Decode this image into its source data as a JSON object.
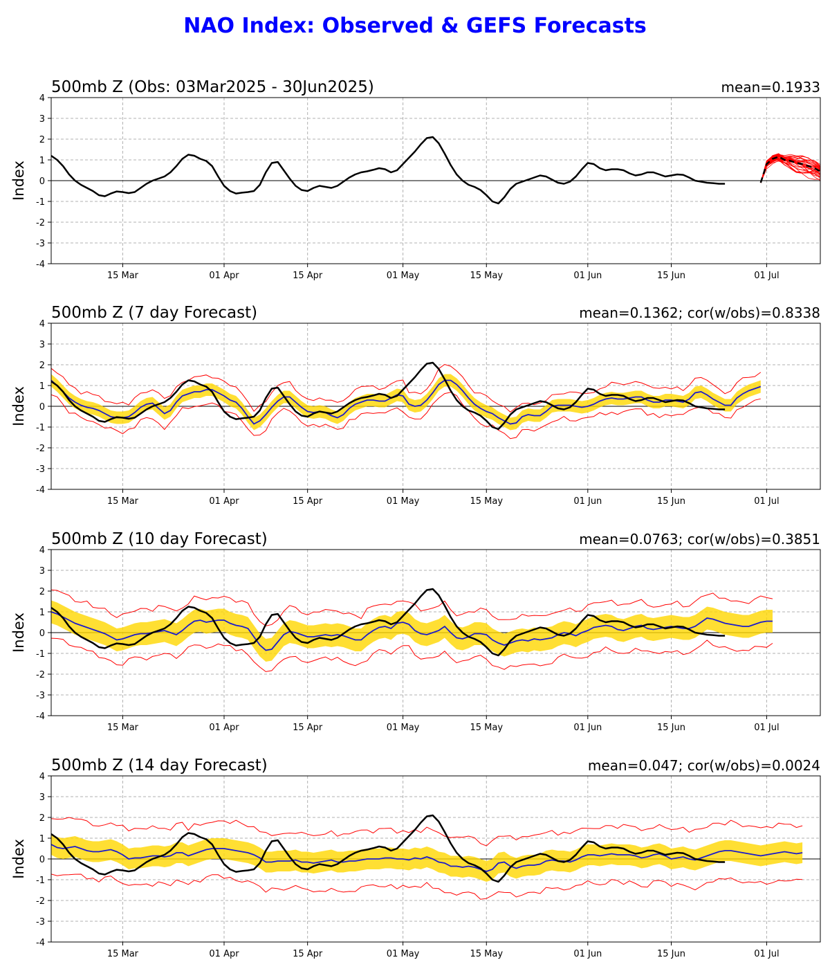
{
  "title": "NAO Index: Observed & GEFS Forecasts",
  "colors": {
    "title": "#0000ff",
    "observed": "#000000",
    "mean": "#1a1acc",
    "members": "#ff0000",
    "spread": "#ffd700"
  },
  "chart_data": [
    {
      "type": "line",
      "title": "500mb Z (Obs: 03Mar2025 - 30Jun2025)",
      "stat": "mean=0.1933",
      "ylabel": "Index",
      "ylim": [
        -4,
        4
      ],
      "xlim": [
        "2025-03-03",
        "2025-07-10"
      ],
      "yticks": [
        -4,
        -3,
        -2,
        -1,
        0,
        1,
        2,
        3,
        4
      ],
      "xticks": [
        {
          "date": "2025-03-15",
          "label": "15 Mar"
        },
        {
          "date": "2025-04-01",
          "label": "01 Apr"
        },
        {
          "date": "2025-04-15",
          "label": "15 Apr"
        },
        {
          "date": "2025-05-01",
          "label": "01 May"
        },
        {
          "date": "2025-05-15",
          "label": "15 May"
        },
        {
          "date": "2025-06-01",
          "label": "01 Jun"
        },
        {
          "date": "2025-06-15",
          "label": "15 Jun"
        },
        {
          "date": "2025-07-01",
          "label": "01 Jul"
        }
      ],
      "grid": true,
      "series": [
        {
          "role": "observed",
          "x_start": "2025-03-03",
          "values": [
            1.2,
            1.0,
            0.7,
            0.3,
            0.0,
            -0.2,
            -0.35,
            -0.5,
            -0.7,
            -0.75,
            -0.62,
            -0.52,
            -0.55,
            -0.6,
            -0.55,
            -0.35,
            -0.15,
            0.0,
            0.1,
            0.2,
            0.4,
            0.7,
            1.05,
            1.25,
            1.2,
            1.05,
            0.95,
            0.7,
            0.2,
            -0.25,
            -0.5,
            -0.62,
            -0.58,
            -0.55,
            -0.5,
            -0.2,
            0.4,
            0.85,
            0.9,
            0.5,
            0.1,
            -0.25,
            -0.45,
            -0.5,
            -0.35,
            -0.25,
            -0.3,
            -0.35,
            -0.25,
            -0.05,
            0.15,
            0.3,
            0.4,
            0.45,
            0.52,
            0.6,
            0.55,
            0.4,
            0.5,
            0.8,
            1.1,
            1.4,
            1.75,
            2.05,
            2.1,
            1.8,
            1.3,
            0.75,
            0.3,
            0.0,
            -0.2,
            -0.3,
            -0.45,
            -0.7,
            -1.0,
            -1.1,
            -0.8,
            -0.4,
            -0.15,
            -0.05,
            0.05,
            0.15,
            0.25,
            0.2,
            0.05,
            -0.1,
            -0.15,
            -0.05,
            0.2,
            0.55,
            0.85,
            0.8,
            0.6,
            0.5,
            0.55,
            0.55,
            0.5,
            0.35,
            0.25,
            0.3,
            0.4,
            0.4,
            0.3,
            0.2,
            0.25,
            0.3,
            0.28,
            0.15,
            0.0,
            -0.05,
            -0.1,
            -0.12,
            -0.15,
            -0.15
          ]
        },
        {
          "role": "forecast-mean",
          "x_start": "2025-06-30",
          "values": [
            -0.1,
            0.8,
            1.05,
            1.15,
            1.0,
            0.95,
            0.85,
            0.8,
            0.7,
            0.6,
            0.45,
            0.35,
            0.4,
            0.45,
            0.35
          ]
        },
        {
          "role": "forecast-members",
          "x_start": "2025-06-30",
          "member_count": 30,
          "spread_start": 0.15,
          "spread_end": 0.75
        }
      ]
    },
    {
      "type": "line",
      "title": "500mb Z (7 day Forecast)",
      "stat": "mean=0.1362; cor(w/obs)=0.8338",
      "ylabel": "Index",
      "ylim": [
        -4,
        4
      ],
      "xlim": [
        "2025-03-03",
        "2025-07-10"
      ],
      "yticks": [
        -4,
        -3,
        -2,
        -1,
        0,
        1,
        2,
        3,
        4
      ],
      "xticks": [
        {
          "date": "2025-03-15",
          "label": "15 Mar"
        },
        {
          "date": "2025-04-01",
          "label": "01 Apr"
        },
        {
          "date": "2025-04-15",
          "label": "15 Apr"
        },
        {
          "date": "2025-05-01",
          "label": "01 May"
        },
        {
          "date": "2025-05-15",
          "label": "15 May"
        },
        {
          "date": "2025-06-01",
          "label": "01 Jun"
        },
        {
          "date": "2025-06-15",
          "label": "15 Jun"
        },
        {
          "date": "2025-07-01",
          "label": "01 Jul"
        }
      ],
      "grid": true,
      "x_start": "2025-03-03",
      "mean": [
        1.25,
        1.0,
        0.7,
        0.4,
        0.2,
        0.05,
        -0.05,
        -0.1,
        -0.2,
        -0.35,
        -0.5,
        -0.55,
        -0.55,
        -0.5,
        -0.3,
        -0.05,
        0.1,
        0.15,
        -0.1,
        -0.35,
        -0.2,
        0.2,
        0.5,
        0.6,
        0.7,
        0.7,
        0.8,
        0.8,
        0.65,
        0.5,
        0.3,
        0.2,
        -0.1,
        -0.5,
        -0.85,
        -0.7,
        -0.4,
        -0.05,
        0.25,
        0.45,
        0.45,
        0.2,
        -0.05,
        -0.25,
        -0.3,
        -0.25,
        -0.3,
        -0.45,
        -0.55,
        -0.4,
        -0.1,
        0.1,
        0.2,
        0.3,
        0.3,
        0.25,
        0.25,
        0.4,
        0.55,
        0.5,
        0.1,
        0.0,
        0.05,
        0.3,
        0.65,
        1.05,
        1.25,
        1.25,
        1.05,
        0.75,
        0.4,
        0.1,
        -0.1,
        -0.25,
        -0.35,
        -0.55,
        -0.7,
        -0.85,
        -0.8,
        -0.5,
        -0.4,
        -0.45,
        -0.45,
        -0.25,
        0.0,
        0.05,
        0.05,
        0.05,
        0.0,
        -0.05,
        0.0,
        0.1,
        0.25,
        0.35,
        0.4,
        0.35,
        0.35,
        0.4,
        0.45,
        0.45,
        0.3,
        0.2,
        0.2,
        0.3,
        0.3,
        0.25,
        0.2,
        0.35,
        0.65,
        0.7,
        0.55,
        0.35,
        0.2,
        0.05,
        0.05,
        0.4,
        0.6,
        0.75,
        0.85,
        0.95
      ],
      "spread": 0.3,
      "red_offset": 0.65,
      "observed_ref": 0
    },
    {
      "type": "line",
      "title": "500mb Z (10 day Forecast)",
      "stat": "mean=0.0763; cor(w/obs)=0.3851",
      "ylabel": "Index",
      "ylim": [
        -4,
        4
      ],
      "xlim": [
        "2025-03-03",
        "2025-07-10"
      ],
      "yticks": [
        -4,
        -3,
        -2,
        -1,
        0,
        1,
        2,
        3,
        4
      ],
      "xticks": [
        {
          "date": "2025-03-15",
          "label": "15 Mar"
        },
        {
          "date": "2025-04-01",
          "label": "01 Apr"
        },
        {
          "date": "2025-04-15",
          "label": "15 Apr"
        },
        {
          "date": "2025-05-01",
          "label": "01 May"
        },
        {
          "date": "2025-05-15",
          "label": "15 May"
        },
        {
          "date": "2025-06-01",
          "label": "01 Jun"
        },
        {
          "date": "2025-06-15",
          "label": "15 Jun"
        },
        {
          "date": "2025-07-01",
          "label": "01 Jul"
        }
      ],
      "grid": true,
      "x_start": "2025-03-03",
      "mean": [
        1.0,
        0.9,
        0.75,
        0.6,
        0.45,
        0.35,
        0.25,
        0.15,
        0.05,
        -0.05,
        -0.2,
        -0.35,
        -0.3,
        -0.2,
        -0.1,
        -0.05,
        -0.05,
        0.0,
        0.05,
        0.1,
        0.0,
        -0.1,
        0.1,
        0.35,
        0.55,
        0.6,
        0.5,
        0.55,
        0.6,
        0.6,
        0.45,
        0.35,
        0.3,
        0.2,
        -0.2,
        -0.6,
        -0.85,
        -0.8,
        -0.45,
        -0.1,
        0.05,
        0.0,
        -0.1,
        -0.2,
        -0.2,
        -0.15,
        -0.1,
        -0.15,
        -0.1,
        -0.15,
        -0.25,
        -0.35,
        -0.35,
        -0.1,
        0.1,
        0.25,
        0.3,
        0.2,
        0.45,
        0.5,
        0.4,
        0.1,
        -0.05,
        -0.1,
        0.0,
        0.1,
        0.3,
        0.0,
        -0.25,
        -0.3,
        -0.2,
        -0.05,
        -0.05,
        -0.1,
        -0.35,
        -0.5,
        -0.6,
        -0.5,
        -0.4,
        -0.35,
        -0.4,
        -0.3,
        -0.35,
        -0.3,
        -0.25,
        -0.1,
        0.0,
        -0.05,
        -0.15,
        0.0,
        0.1,
        0.25,
        0.3,
        0.35,
        0.3,
        0.15,
        0.1,
        0.2,
        0.3,
        0.35,
        0.2,
        0.15,
        0.2,
        0.25,
        0.3,
        0.25,
        0.2,
        0.2,
        0.3,
        0.5,
        0.7,
        0.65,
        0.55,
        0.45,
        0.4,
        0.35,
        0.3,
        0.3,
        0.4,
        0.5,
        0.55,
        0.55
      ],
      "spread": 0.55,
      "red_offset": 1.15,
      "observed_ref": 0
    },
    {
      "type": "line",
      "title": "500mb Z (14 day Forecast)",
      "stat": "mean=0.047; cor(w/obs)=0.0024",
      "ylabel": "Index",
      "ylim": [
        -4,
        4
      ],
      "xlim": [
        "2025-03-03",
        "2025-07-10"
      ],
      "yticks": [
        -4,
        -3,
        -2,
        -1,
        0,
        1,
        2,
        3,
        4
      ],
      "xticks": [
        {
          "date": "2025-03-15",
          "label": "15 Mar"
        },
        {
          "date": "2025-04-01",
          "label": "01 Apr"
        },
        {
          "date": "2025-04-15",
          "label": "15 Apr"
        },
        {
          "date": "2025-05-01",
          "label": "01 May"
        },
        {
          "date": "2025-05-15",
          "label": "15 May"
        },
        {
          "date": "2025-06-01",
          "label": "01 Jun"
        },
        {
          "date": "2025-06-15",
          "label": "15 Jun"
        },
        {
          "date": "2025-07-01",
          "label": "01 Jul"
        }
      ],
      "grid": true,
      "x_start": "2025-03-03",
      "mean": [
        0.7,
        0.55,
        0.5,
        0.55,
        0.6,
        0.5,
        0.4,
        0.35,
        0.35,
        0.4,
        0.45,
        0.35,
        0.2,
        0.0,
        0.05,
        0.05,
        0.1,
        0.15,
        0.15,
        0.1,
        0.15,
        0.3,
        0.3,
        0.15,
        0.25,
        0.35,
        0.45,
        0.5,
        0.5,
        0.5,
        0.45,
        0.4,
        0.35,
        0.3,
        0.2,
        0.05,
        -0.15,
        -0.15,
        -0.1,
        -0.1,
        -0.1,
        -0.05,
        -0.15,
        -0.15,
        -0.2,
        -0.15,
        -0.1,
        -0.05,
        -0.15,
        -0.15,
        -0.1,
        -0.1,
        -0.05,
        0.0,
        0.0,
        0.0,
        0.05,
        0.05,
        0.0,
        0.0,
        -0.05,
        0.05,
        0.0,
        0.1,
        0.0,
        -0.15,
        -0.2,
        -0.35,
        -0.35,
        -0.4,
        -0.35,
        -0.4,
        -0.5,
        -0.6,
        -0.5,
        -0.2,
        -0.15,
        -0.35,
        -0.45,
        -0.35,
        -0.3,
        -0.3,
        -0.25,
        -0.1,
        -0.05,
        -0.1,
        -0.1,
        -0.15,
        -0.05,
        0.1,
        0.2,
        0.2,
        0.15,
        0.2,
        0.25,
        0.2,
        0.2,
        0.2,
        0.15,
        0.05,
        0.1,
        0.2,
        0.25,
        0.15,
        0.0,
        0.05,
        0.1,
        0.0,
        -0.05,
        0.05,
        0.15,
        0.25,
        0.35,
        0.4,
        0.4,
        0.35,
        0.3,
        0.25,
        0.2,
        0.15,
        0.2,
        0.25,
        0.3,
        0.35,
        0.3,
        0.25,
        0.3
      ],
      "spread": 0.5,
      "red_offset": 1.35,
      "observed_ref": 0
    }
  ]
}
